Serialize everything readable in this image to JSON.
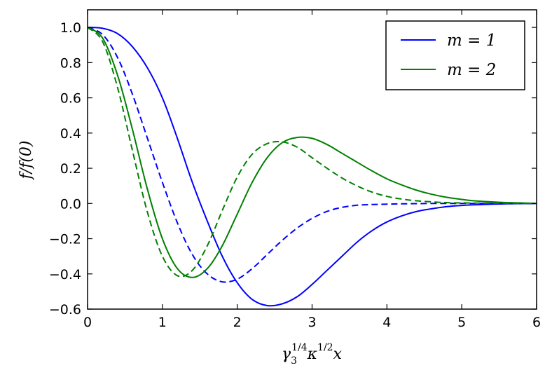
{
  "chart_data": {
    "type": "line",
    "xlabel_parts": [
      "γ",
      "3",
      "1/4",
      "κ",
      "1/2",
      "x"
    ],
    "ylabel": "f/f(0)",
    "xlim": [
      0,
      6
    ],
    "ylim": [
      -0.6,
      1.1
    ],
    "xticks": [
      0,
      1,
      2,
      3,
      4,
      5,
      6
    ],
    "xtick_labels": [
      "0",
      "1",
      "2",
      "3",
      "4",
      "5",
      "6"
    ],
    "yticks": [
      1.0,
      0.8,
      0.6,
      0.4,
      0.2,
      0.0,
      -0.2,
      -0.4,
      -0.6
    ],
    "ytick_labels": [
      "1.0",
      "0.8",
      "0.6",
      "0.4",
      "0.2",
      "0.0",
      "−0.2",
      "−0.4",
      "−0.6"
    ],
    "grid": false,
    "legend_position": "top-right",
    "series": [
      {
        "name": "m = 1",
        "color": "#0000ff",
        "linestyle": "solid",
        "x": [
          0,
          0.2,
          0.4,
          0.6,
          0.8,
          1.0,
          1.2,
          1.4,
          1.6,
          1.8,
          2.0,
          2.2,
          2.4,
          2.6,
          2.8,
          3.0,
          3.2,
          3.4,
          3.6,
          3.8,
          4.0,
          4.2,
          4.4,
          4.6,
          4.8,
          5.0,
          5.2,
          5.4,
          5.6,
          5.8,
          6.0
        ],
        "y": [
          1.0,
          0.995,
          0.965,
          0.89,
          0.77,
          0.6,
          0.37,
          0.12,
          -0.1,
          -0.3,
          -0.45,
          -0.545,
          -0.58,
          -0.57,
          -0.53,
          -0.46,
          -0.38,
          -0.3,
          -0.22,
          -0.155,
          -0.105,
          -0.07,
          -0.045,
          -0.03,
          -0.018,
          -0.011,
          -0.007,
          -0.004,
          -0.002,
          -0.001,
          0.0
        ]
      },
      {
        "name": "",
        "color": "#0000ff",
        "linestyle": "dashed",
        "x": [
          0,
          0.2,
          0.4,
          0.6,
          0.8,
          1.0,
          1.2,
          1.4,
          1.6,
          1.8,
          2.0,
          2.2,
          2.4,
          2.6,
          2.8,
          3.0,
          3.2,
          3.4,
          3.6,
          3.8,
          4.0,
          4.2,
          4.4,
          4.6,
          4.8,
          5.0,
          5.5,
          6.0
        ],
        "y": [
          1.0,
          0.96,
          0.83,
          0.62,
          0.37,
          0.12,
          -0.11,
          -0.29,
          -0.4,
          -0.445,
          -0.43,
          -0.37,
          -0.29,
          -0.21,
          -0.14,
          -0.085,
          -0.045,
          -0.022,
          -0.01,
          -0.006,
          -0.004,
          -0.002,
          -0.001,
          0.0,
          0.0,
          0.0,
          0.0,
          0.0
        ]
      },
      {
        "name": "m = 2",
        "color": "#008000",
        "linestyle": "solid",
        "x": [
          0,
          0.2,
          0.4,
          0.6,
          0.8,
          1.0,
          1.2,
          1.4,
          1.6,
          1.8,
          2.0,
          2.2,
          2.4,
          2.6,
          2.8,
          3.0,
          3.2,
          3.4,
          3.6,
          3.8,
          4.0,
          4.2,
          4.4,
          4.6,
          4.8,
          5.0,
          5.2,
          5.4,
          5.6,
          5.8,
          6.0
        ],
        "y": [
          1.0,
          0.94,
          0.73,
          0.42,
          0.08,
          -0.2,
          -0.37,
          -0.42,
          -0.37,
          -0.24,
          -0.06,
          0.12,
          0.26,
          0.345,
          0.375,
          0.37,
          0.335,
          0.285,
          0.235,
          0.185,
          0.14,
          0.105,
          0.075,
          0.052,
          0.035,
          0.023,
          0.014,
          0.009,
          0.005,
          0.003,
          0.0
        ]
      },
      {
        "name": "",
        "color": "#008000",
        "linestyle": "dashed",
        "x": [
          0,
          0.2,
          0.4,
          0.6,
          0.8,
          1.0,
          1.2,
          1.4,
          1.6,
          1.8,
          2.0,
          2.2,
          2.4,
          2.6,
          2.8,
          3.0,
          3.2,
          3.4,
          3.6,
          3.8,
          4.0,
          4.2,
          4.4,
          4.6,
          4.8,
          5.0,
          5.5,
          6.0
        ],
        "y": [
          1.0,
          0.92,
          0.66,
          0.3,
          -0.05,
          -0.3,
          -0.41,
          -0.38,
          -0.24,
          -0.04,
          0.15,
          0.28,
          0.34,
          0.35,
          0.32,
          0.26,
          0.2,
          0.145,
          0.1,
          0.065,
          0.04,
          0.025,
          0.015,
          0.009,
          0.005,
          0.003,
          0.001,
          0.0
        ]
      }
    ]
  }
}
